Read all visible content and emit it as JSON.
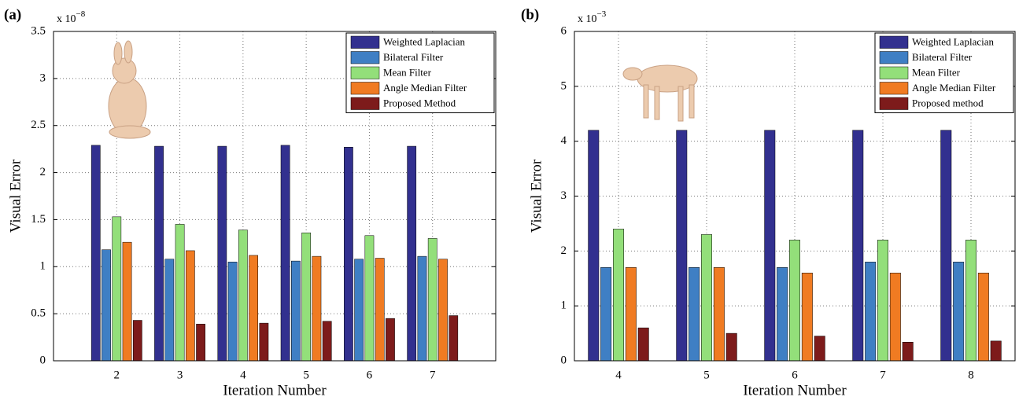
{
  "chart_data": [
    {
      "type": "bar",
      "panel_label": "(a)",
      "exponent_base": "x 10",
      "exponent": "−8",
      "y_label": "Visual Error",
      "x_label": "Iteration Number",
      "categories": [
        "2",
        "3",
        "4",
        "5",
        "6",
        "7"
      ],
      "series": [
        {
          "name": "Weighted Laplacian",
          "color": "#32308f",
          "values": [
            2.29,
            2.28,
            2.28,
            2.29,
            2.27,
            2.28
          ]
        },
        {
          "name": "Bilateral Filter",
          "color": "#3f7fc4",
          "values": [
            1.18,
            1.08,
            1.05,
            1.06,
            1.08,
            1.11
          ]
        },
        {
          "name": "Mean Filter",
          "color": "#93df7a",
          "values": [
            1.53,
            1.45,
            1.39,
            1.36,
            1.33,
            1.3
          ]
        },
        {
          "name": "Angle Median Filter",
          "color": "#f07b22",
          "values": [
            1.26,
            1.17,
            1.12,
            1.11,
            1.09,
            1.08
          ]
        },
        {
          "name": "Proposed Method",
          "color": "#7d1b1b",
          "values": [
            0.43,
            0.39,
            0.4,
            0.42,
            0.45,
            0.48
          ]
        }
      ],
      "ylim": [
        0,
        3.5
      ],
      "yticks": [
        0,
        0.5,
        1,
        1.5,
        2,
        2.5,
        3,
        3.5
      ],
      "grid": true,
      "legend": "upper right"
    },
    {
      "type": "bar",
      "panel_label": "(b)",
      "exponent_base": "x 10",
      "exponent": "−3",
      "y_label": "Visual Error",
      "x_label": "Iteration Number",
      "categories": [
        "4",
        "5",
        "6",
        "7",
        "8"
      ],
      "series": [
        {
          "name": "Weighted Laplacian",
          "color": "#32308f",
          "values": [
            4.2,
            4.2,
            4.2,
            4.2,
            4.2
          ]
        },
        {
          "name": "Bilateral Filter",
          "color": "#3f7fc4",
          "values": [
            1.7,
            1.7,
            1.7,
            1.8,
            1.8
          ]
        },
        {
          "name": "Mean Filter",
          "color": "#93df7a",
          "values": [
            2.4,
            2.3,
            2.2,
            2.2,
            2.2
          ]
        },
        {
          "name": "Angle Median Filter",
          "color": "#f07b22",
          "values": [
            1.7,
            1.7,
            1.6,
            1.6,
            1.6
          ]
        },
        {
          "name": "Proposed method",
          "color": "#7d1b1b",
          "values": [
            0.6,
            0.5,
            0.45,
            0.34,
            0.36
          ]
        }
      ],
      "ylim": [
        0,
        6
      ],
      "yticks": [
        0,
        1,
        2,
        3,
        4,
        5,
        6
      ],
      "grid": true,
      "legend": "upper right"
    }
  ]
}
